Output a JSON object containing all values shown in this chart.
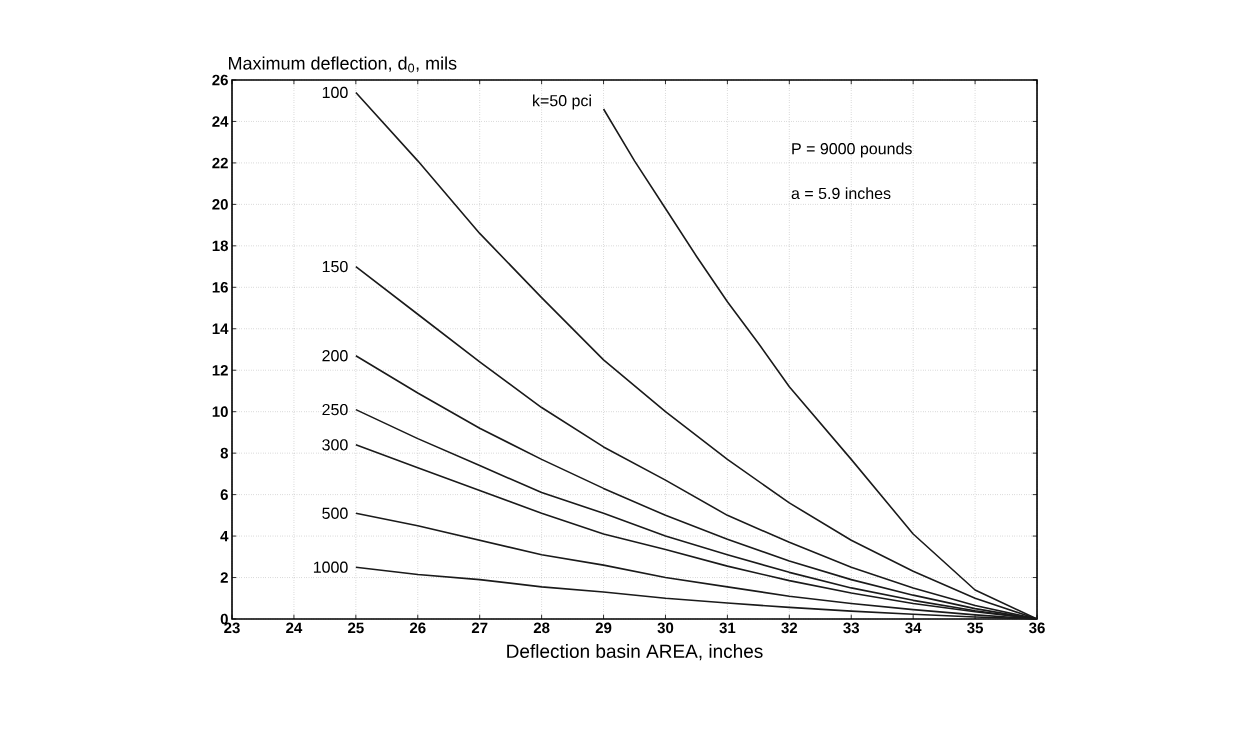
{
  "chart_data": {
    "type": "line",
    "xlabel": "Deflection basin AREA, inches",
    "ylabel": "Maximum deflection, d$_{0}$, mils",
    "x": [
      25,
      26,
      27,
      28,
      29,
      30,
      31,
      32,
      33,
      34,
      35,
      36
    ],
    "series": [
      {
        "name": "k=50 pci",
        "color": "#1a1a1a",
        "x": [
          29,
          29.5,
          30,
          30.5,
          31,
          31.5,
          32,
          33,
          34,
          35,
          36
        ],
        "values": [
          24.6,
          22.1,
          19.8,
          17.5,
          15.3,
          13.3,
          11.2,
          7.7,
          4.1,
          1.4,
          0
        ]
      },
      {
        "name": "100",
        "color": "#1a1a1a",
        "values": [
          25.4,
          22.1,
          18.6,
          15.5,
          12.5,
          10.0,
          7.7,
          5.6,
          3.8,
          2.3,
          1.0,
          0
        ]
      },
      {
        "name": "150",
        "color": "#1a1a1a",
        "values": [
          17.0,
          14.7,
          12.4,
          10.2,
          8.3,
          6.7,
          5.0,
          3.7,
          2.5,
          1.5,
          0.65,
          0
        ]
      },
      {
        "name": "200",
        "color": "#1a1a1a",
        "values": [
          12.7,
          10.9,
          9.2,
          7.7,
          6.3,
          5.0,
          3.85,
          2.8,
          1.9,
          1.15,
          0.5,
          0
        ]
      },
      {
        "name": "250",
        "color": "#1a1a1a",
        "values": [
          10.1,
          8.7,
          7.4,
          6.1,
          5.1,
          4.0,
          3.1,
          2.25,
          1.5,
          0.9,
          0.4,
          0
        ]
      },
      {
        "name": "300",
        "color": "#1a1a1a",
        "values": [
          8.4,
          7.3,
          6.2,
          5.1,
          4.1,
          3.35,
          2.55,
          1.85,
          1.25,
          0.75,
          0.35,
          0
        ]
      },
      {
        "name": "500",
        "color": "#1a1a1a",
        "values": [
          5.1,
          4.5,
          3.8,
          3.1,
          2.6,
          2.0,
          1.55,
          1.1,
          0.75,
          0.45,
          0.2,
          0
        ]
      },
      {
        "name": "1000",
        "color": "#1a1a1a",
        "values": [
          2.5,
          2.15,
          1.9,
          1.55,
          1.3,
          1.0,
          0.77,
          0.56,
          0.38,
          0.23,
          0.1,
          0
        ]
      }
    ],
    "annotations": [
      "P = 9000 pounds",
      "a = 5.9 inches"
    ],
    "xlim": [
      23,
      36
    ],
    "ylim": [
      0,
      26
    ],
    "xticks": [
      23,
      24,
      25,
      26,
      27,
      28,
      29,
      30,
      31,
      32,
      33,
      34,
      35,
      36
    ],
    "yticks": [
      0,
      2,
      4,
      6,
      8,
      10,
      12,
      14,
      16,
      18,
      20,
      22,
      24,
      26
    ],
    "grid": true,
    "legend": false,
    "marker": "none",
    "line_style": "solid"
  }
}
